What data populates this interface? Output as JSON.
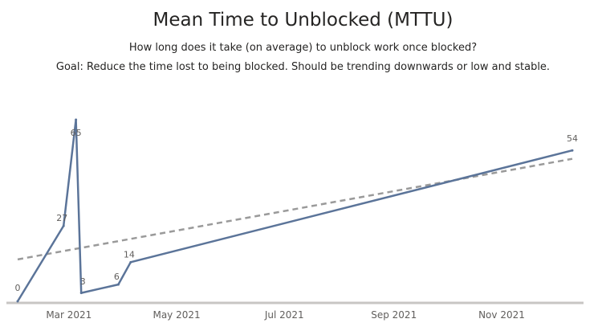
{
  "chart_data": {
    "type": "line",
    "title": "Mean Time to Unblocked (MTTU)",
    "subtitle": "How long does it take (on average) to unblock work once blocked?",
    "goal": "Goal: Reduce the time lost to being blocked. Should be trending downwards or low and stable.",
    "xlabel": "",
    "ylabel": "",
    "x_ticks": [
      "Mar 2021",
      "May 2021",
      "Jul 2021",
      "Sep 2021",
      "Nov 2021"
    ],
    "series": [
      {
        "points": [
          {
            "x": "2021-01-31",
            "y": 0,
            "label": "0"
          },
          {
            "x": "2021-02-26",
            "y": 27,
            "label": "27"
          },
          {
            "x": "2021-03-05",
            "y": 65,
            "label": "65"
          },
          {
            "x": "2021-03-08",
            "y": 3,
            "label": "3"
          },
          {
            "x": "2021-03-29",
            "y": 6,
            "label": "6"
          },
          {
            "x": "2021-04-05",
            "y": 14,
            "label": "14"
          },
          {
            "x": "2021-12-11",
            "y": 54,
            "label": "54"
          }
        ],
        "color": "#5b7499"
      }
    ],
    "trend_line": {
      "start": {
        "x": "2021-01-31",
        "y": 15
      },
      "end": {
        "x": "2021-12-11",
        "y": 51
      },
      "color": "#9a9a9a"
    },
    "ylim": [
      0,
      65
    ],
    "xlim": [
      "2021-01-31",
      "2021-12-11"
    ],
    "grid": false,
    "legend": "none"
  }
}
